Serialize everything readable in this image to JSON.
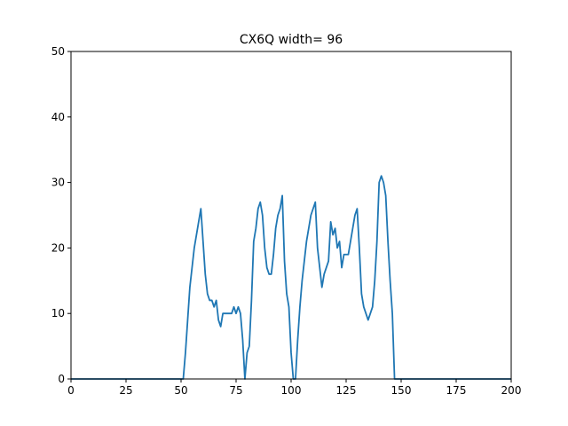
{
  "chart_data": {
    "type": "line",
    "title": "CX6Q width= 96",
    "xlabel": "",
    "ylabel": "",
    "xlim": [
      0,
      200
    ],
    "ylim": [
      0,
      50
    ],
    "xticks": [
      0,
      25,
      50,
      75,
      100,
      125,
      150,
      175,
      200
    ],
    "yticks": [
      0,
      10,
      20,
      30,
      40,
      50
    ],
    "grid": false,
    "series": [
      {
        "color": "#1f77b4",
        "x": [
          0,
          51,
          52,
          53,
          54,
          55,
          56,
          57,
          58,
          59,
          60,
          61,
          62,
          63,
          64,
          65,
          66,
          67,
          68,
          69,
          70,
          71,
          72,
          73,
          74,
          75,
          76,
          77,
          78,
          79,
          80,
          81,
          82,
          83,
          84,
          85,
          86,
          87,
          88,
          89,
          90,
          91,
          92,
          93,
          94,
          95,
          96,
          97,
          98,
          99,
          100,
          101,
          102,
          103,
          104,
          105,
          106,
          107,
          108,
          109,
          110,
          111,
          112,
          113,
          114,
          115,
          116,
          117,
          118,
          119,
          120,
          121,
          122,
          123,
          124,
          125,
          126,
          127,
          128,
          129,
          130,
          131,
          132,
          133,
          134,
          135,
          136,
          137,
          138,
          139,
          140,
          141,
          142,
          143,
          144,
          145,
          146,
          147,
          148,
          200
        ],
        "y": [
          0,
          0,
          4,
          9,
          14,
          17,
          20,
          22,
          24,
          26,
          21,
          16,
          13,
          12,
          12,
          11,
          12,
          9,
          8,
          10,
          10,
          10,
          10,
          10,
          11,
          10,
          11,
          10,
          6,
          0,
          4,
          5,
          12,
          21,
          23,
          26,
          27,
          25,
          20,
          17,
          16,
          16,
          19,
          23,
          25,
          26,
          28,
          18,
          13,
          11,
          4,
          0,
          0,
          6,
          11,
          15,
          18,
          21,
          23,
          25,
          26,
          27,
          20,
          17,
          14,
          16,
          17,
          18,
          24,
          22,
          23,
          20,
          21,
          17,
          19,
          19,
          19,
          21,
          23,
          25,
          26,
          20,
          13,
          11,
          10,
          9,
          10,
          11,
          15,
          21,
          30,
          31,
          30,
          28,
          21,
          15,
          10,
          0,
          0,
          0
        ]
      }
    ]
  }
}
